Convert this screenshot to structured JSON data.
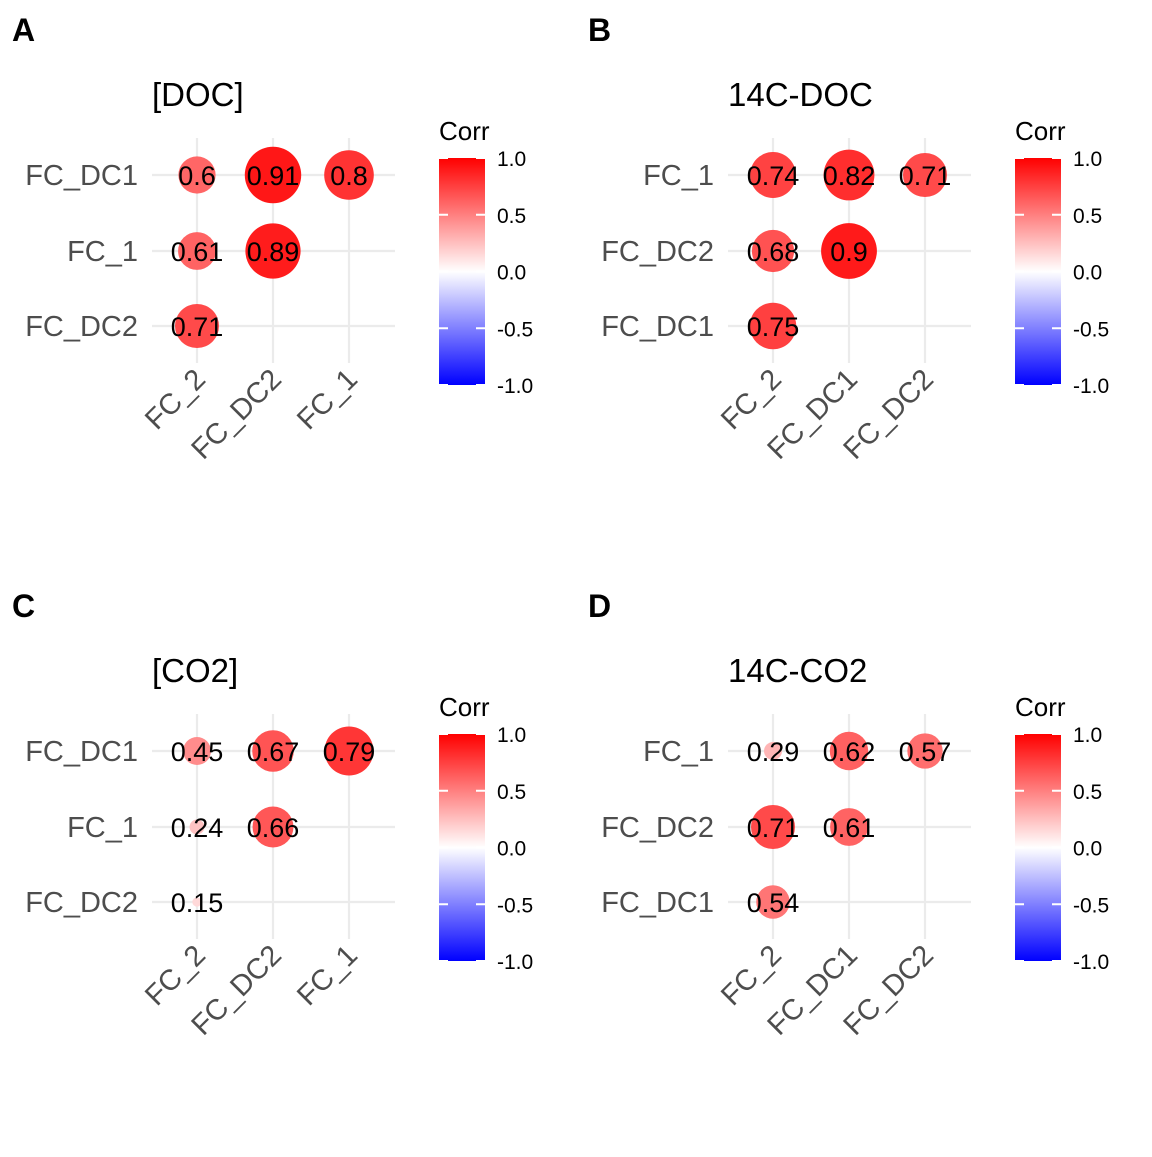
{
  "chart_data": [
    {
      "type": "correlation-matrix",
      "letter": "A",
      "title": "[DOC]",
      "rows": [
        "FC_DC1",
        "FC_1",
        "FC_DC2"
      ],
      "columns": [
        "FC_2",
        "FC_DC2",
        "FC_1"
      ],
      "cells": [
        {
          "row": "FC_DC1",
          "col": "FC_2",
          "value": 0.6,
          "label": "0.6"
        },
        {
          "row": "FC_DC1",
          "col": "FC_DC2",
          "value": 0.91,
          "label": "0.91"
        },
        {
          "row": "FC_DC1",
          "col": "FC_1",
          "value": 0.8,
          "label": "0.8"
        },
        {
          "row": "FC_1",
          "col": "FC_2",
          "value": 0.61,
          "label": "0.61"
        },
        {
          "row": "FC_1",
          "col": "FC_DC2",
          "value": 0.89,
          "label": "0.89"
        },
        {
          "row": "FC_DC2",
          "col": "FC_2",
          "value": 0.71,
          "label": "0.71"
        }
      ],
      "legend": {
        "title": "Corr",
        "ticks": [
          "1.0",
          "0.5",
          "0.0",
          "-0.5",
          "-1.0"
        ],
        "range": [
          -1,
          1
        ]
      }
    },
    {
      "type": "correlation-matrix",
      "letter": "B",
      "title": "14C-DOC",
      "rows": [
        "FC_1",
        "FC_DC2",
        "FC_DC1"
      ],
      "columns": [
        "FC_2",
        "FC_DC1",
        "FC_DC2"
      ],
      "cells": [
        {
          "row": "FC_1",
          "col": "FC_2",
          "value": 0.74,
          "label": "0.74"
        },
        {
          "row": "FC_1",
          "col": "FC_DC1",
          "value": 0.82,
          "label": "0.82"
        },
        {
          "row": "FC_1",
          "col": "FC_DC2",
          "value": 0.71,
          "label": "0.71"
        },
        {
          "row": "FC_DC2",
          "col": "FC_2",
          "value": 0.68,
          "label": "0.68"
        },
        {
          "row": "FC_DC2",
          "col": "FC_DC1",
          "value": 0.9,
          "label": "0.9"
        },
        {
          "row": "FC_DC1",
          "col": "FC_2",
          "value": 0.75,
          "label": "0.75"
        }
      ],
      "legend": {
        "title": "Corr",
        "ticks": [
          "1.0",
          "0.5",
          "0.0",
          "-0.5",
          "-1.0"
        ],
        "range": [
          -1,
          1
        ]
      }
    },
    {
      "type": "correlation-matrix",
      "letter": "C",
      "title": "[CO2]",
      "rows": [
        "FC_DC1",
        "FC_1",
        "FC_DC2"
      ],
      "columns": [
        "FC_2",
        "FC_DC2",
        "FC_1"
      ],
      "cells": [
        {
          "row": "FC_DC1",
          "col": "FC_2",
          "value": 0.45,
          "label": "0.45"
        },
        {
          "row": "FC_DC1",
          "col": "FC_DC2",
          "value": 0.67,
          "label": "0.67"
        },
        {
          "row": "FC_DC1",
          "col": "FC_1",
          "value": 0.79,
          "label": "0.79"
        },
        {
          "row": "FC_1",
          "col": "FC_2",
          "value": 0.24,
          "label": "0.24"
        },
        {
          "row": "FC_1",
          "col": "FC_DC2",
          "value": 0.66,
          "label": "0.66"
        },
        {
          "row": "FC_DC2",
          "col": "FC_2",
          "value": 0.15,
          "label": "0.15"
        }
      ],
      "legend": {
        "title": "Corr",
        "ticks": [
          "1.0",
          "0.5",
          "0.0",
          "-0.5",
          "-1.0"
        ],
        "range": [
          -1,
          1
        ]
      }
    },
    {
      "type": "correlation-matrix",
      "letter": "D",
      "title": "14C-CO2",
      "rows": [
        "FC_1",
        "FC_DC2",
        "FC_DC1"
      ],
      "columns": [
        "FC_2",
        "FC_DC1",
        "FC_DC2"
      ],
      "cells": [
        {
          "row": "FC_1",
          "col": "FC_2",
          "value": 0.29,
          "label": "0.29"
        },
        {
          "row": "FC_1",
          "col": "FC_DC1",
          "value": 0.62,
          "label": "0.62"
        },
        {
          "row": "FC_1",
          "col": "FC_DC2",
          "value": 0.57,
          "label": "0.57"
        },
        {
          "row": "FC_DC2",
          "col": "FC_2",
          "value": 0.71,
          "label": "0.71"
        },
        {
          "row": "FC_DC2",
          "col": "FC_DC1",
          "value": 0.61,
          "label": "0.61"
        },
        {
          "row": "FC_DC1",
          "col": "FC_2",
          "value": 0.54,
          "label": "0.54"
        }
      ],
      "legend": {
        "title": "Corr",
        "ticks": [
          "1.0",
          "0.5",
          "0.0",
          "-0.5",
          "-1.0"
        ],
        "range": [
          -1,
          1
        ]
      }
    }
  ],
  "colors": {
    "high": "#ff0000",
    "mid": "#ffffff",
    "low": "#0000ff",
    "grid": "#ebebeb",
    "tick_text": "#4d4d4d"
  }
}
